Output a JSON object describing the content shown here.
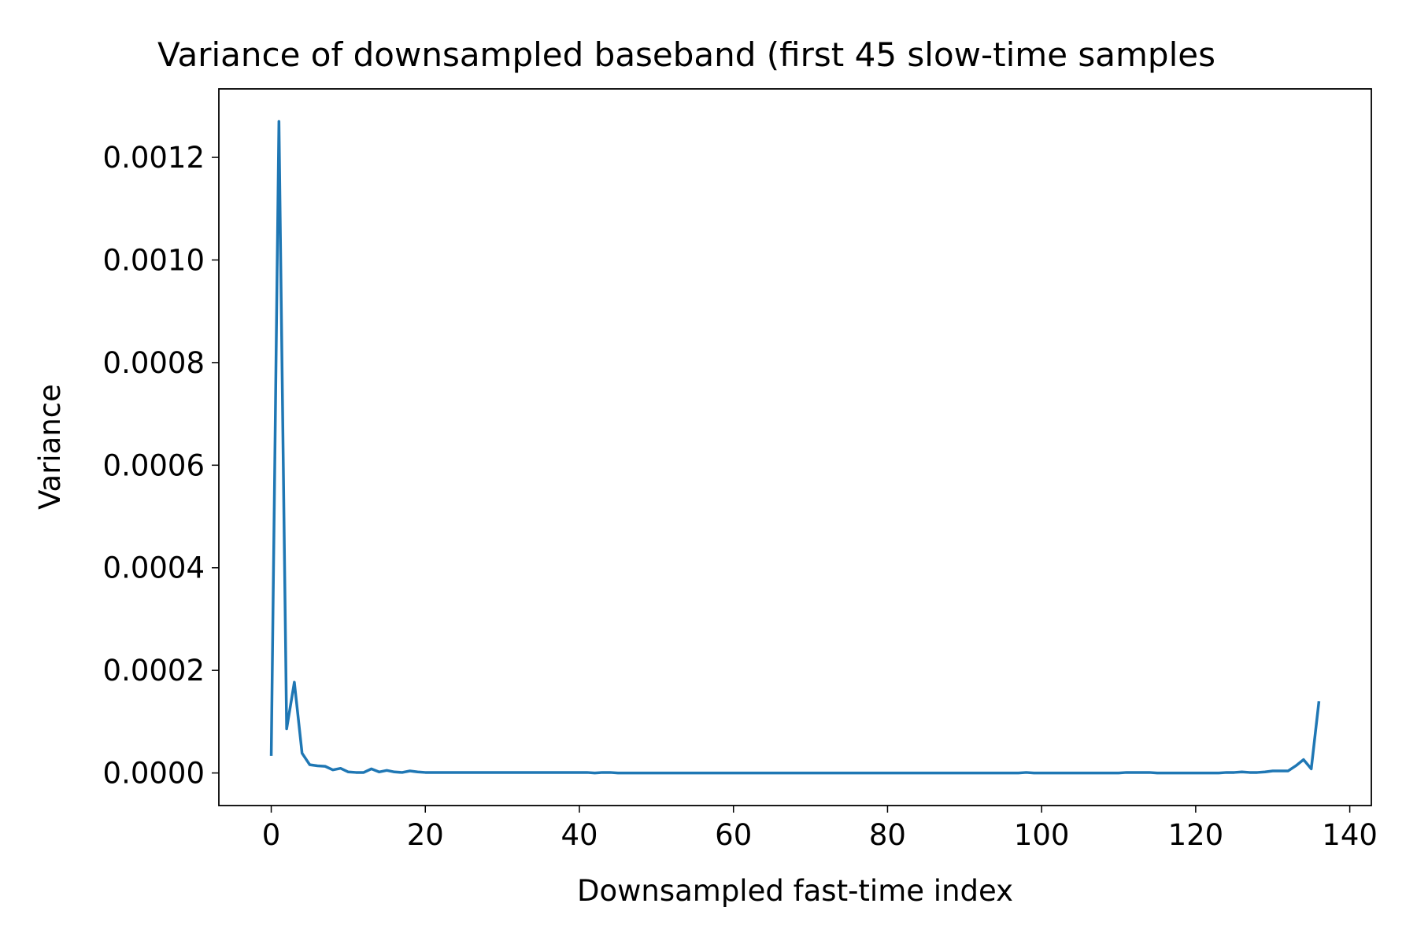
{
  "chart_data": {
    "type": "line",
    "title": "Variance of downsampled baseband (first 45 slow-time samples",
    "x_label": "Downsampled fast-time index",
    "y_label": "Variance",
    "x": [
      0,
      1,
      2,
      3,
      4,
      5,
      6,
      7,
      8,
      9,
      10,
      11,
      12,
      13,
      14,
      15,
      16,
      17,
      18,
      19,
      20,
      21,
      22,
      23,
      24,
      25,
      26,
      27,
      28,
      29,
      30,
      31,
      32,
      33,
      34,
      35,
      36,
      37,
      38,
      39,
      40,
      41,
      42,
      43,
      44,
      45,
      46,
      47,
      48,
      49,
      50,
      51,
      52,
      53,
      54,
      55,
      56,
      57,
      58,
      59,
      60,
      61,
      62,
      63,
      64,
      65,
      66,
      67,
      68,
      69,
      70,
      71,
      72,
      73,
      74,
      75,
      76,
      77,
      78,
      79,
      80,
      81,
      82,
      83,
      84,
      85,
      86,
      87,
      88,
      89,
      90,
      91,
      92,
      93,
      94,
      95,
      96,
      97,
      98,
      99,
      100,
      101,
      102,
      103,
      104,
      105,
      106,
      107,
      108,
      109,
      110,
      111,
      112,
      113,
      114,
      115,
      116,
      117,
      118,
      119,
      120,
      121,
      122,
      123,
      124,
      125,
      126,
      127,
      128,
      129,
      130,
      131,
      132,
      133,
      134,
      135,
      136
    ],
    "series": [
      {
        "name": "Variance",
        "color": "#1f77b4",
        "values": [
          3.33e-05,
          0.00127,
          8.6e-05,
          0.000177,
          3.86e-05,
          1.6e-05,
          1.4e-05,
          1.3e-05,
          6e-06,
          9e-06,
          2e-06,
          1e-06,
          1e-06,
          8e-06,
          2e-06,
          5e-06,
          2e-06,
          1e-06,
          4e-06,
          2e-06,
          1e-06,
          1e-06,
          1e-06,
          1e-06,
          1e-06,
          1e-06,
          1e-06,
          1e-06,
          1e-06,
          1e-06,
          1e-06,
          1e-06,
          1e-06,
          1e-06,
          1e-06,
          1e-06,
          1e-06,
          1e-06,
          1e-06,
          1e-06,
          1e-06,
          1e-06,
          0,
          1e-06,
          1e-06,
          0,
          0,
          0,
          0,
          0,
          0,
          0,
          0,
          0,
          0,
          0,
          0,
          0,
          0,
          0,
          0,
          0,
          0,
          0,
          0,
          0,
          0,
          0,
          0,
          0,
          0,
          0,
          0,
          0,
          0,
          0,
          0,
          0,
          0,
          0,
          0,
          0,
          0,
          0,
          0,
          0,
          0,
          0,
          0,
          0,
          0,
          0,
          0,
          0,
          0,
          0,
          0,
          0,
          1e-06,
          0,
          0,
          0,
          0,
          0,
          0,
          0,
          0,
          0,
          0,
          0,
          0,
          1e-06,
          1e-06,
          1e-06,
          1e-06,
          0,
          0,
          0,
          0,
          0,
          0,
          0,
          0,
          0,
          1e-06,
          1e-06,
          2e-06,
          1e-06,
          1e-06,
          2e-06,
          4e-06,
          4e-06,
          4e-06,
          1.4e-05,
          2.6e-05,
          8e-06,
          0.00014
        ]
      }
    ],
    "xlim": [
      -6.8,
      142.8
    ],
    "ylim": [
      -6.35e-05,
      0.0013335
    ],
    "xticks": [
      0,
      20,
      40,
      60,
      80,
      100,
      120,
      140
    ],
    "yticks": [
      {
        "value": 0,
        "label": "0.0000"
      },
      {
        "value": 0.0002,
        "label": "0.0002"
      },
      {
        "value": 0.0004,
        "label": "0.0004"
      },
      {
        "value": 0.0006,
        "label": "0.0006"
      },
      {
        "value": 0.0008,
        "label": "0.0008"
      },
      {
        "value": 0.001,
        "label": "0.0010"
      },
      {
        "value": 0.0012,
        "label": "0.0012"
      }
    ],
    "grid": false
  }
}
